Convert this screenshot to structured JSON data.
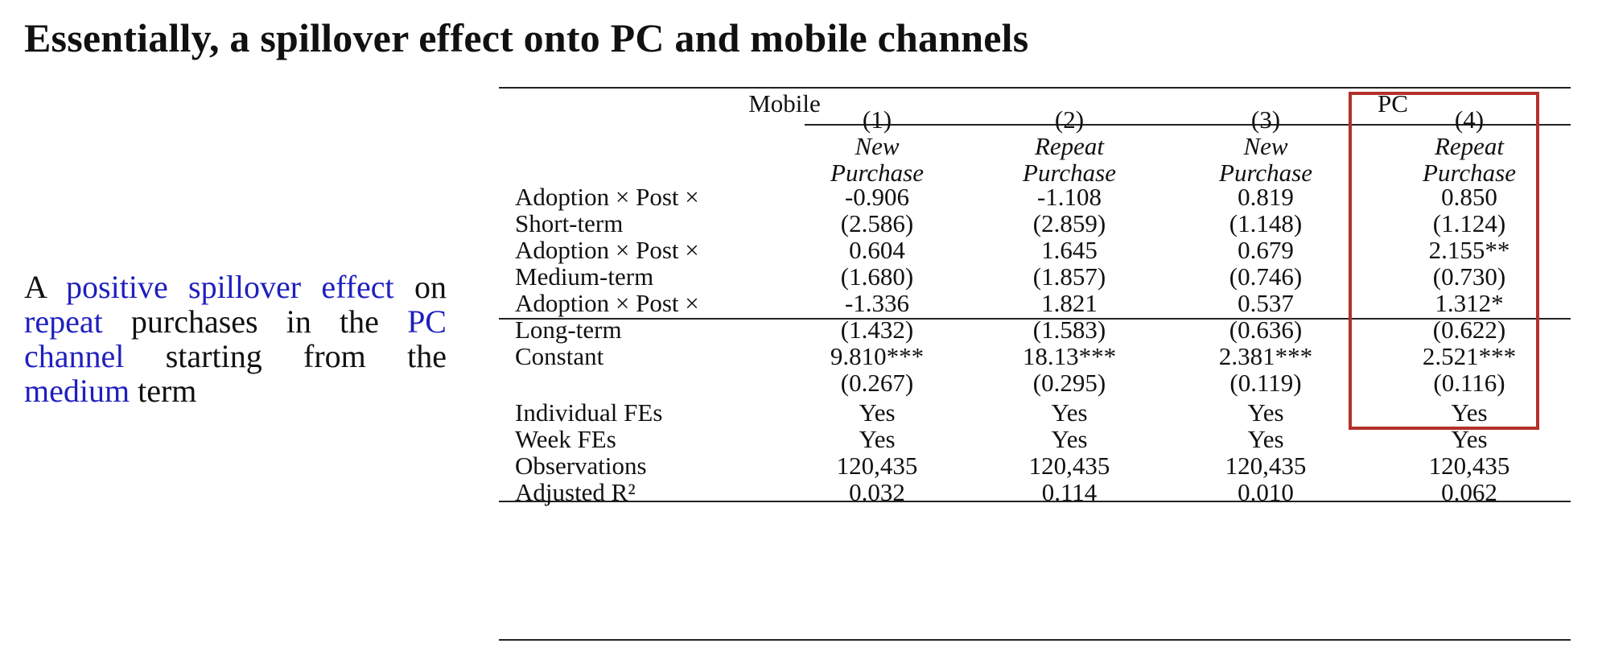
{
  "title": "Essentially, a spillover effect onto PC and mobile channels",
  "callout": [
    {
      "text": "A ",
      "highlight": false
    },
    {
      "text": "positive spillover effect",
      "highlight": true
    },
    {
      "text": " on ",
      "highlight": false
    },
    {
      "text": "repeat",
      "highlight": true
    },
    {
      "text": " purchases in the ",
      "highlight": false
    },
    {
      "text": "PC channel",
      "highlight": true
    },
    {
      "text": " starting from the ",
      "highlight": false
    },
    {
      "text": "medium",
      "highlight": true
    },
    {
      "text": " term",
      "highlight": false
    }
  ],
  "colors": {
    "highlight_text": "#1f1fbf",
    "highlight_box": "#b3312a"
  },
  "table": {
    "groups": {
      "mobile": "Mobile",
      "pc": "PC"
    },
    "columns": [
      {
        "num": "(1)",
        "l1": "New",
        "l2": "Purchase"
      },
      {
        "num": "(2)",
        "l1": "Repeat",
        "l2": "Purchase"
      },
      {
        "num": "(3)",
        "l1": "New",
        "l2": "Purchase"
      },
      {
        "num": "(4)",
        "l1": "Repeat",
        "l2": "Purchase"
      }
    ],
    "rows": [
      {
        "label": "Adoption × Post ×",
        "values": [
          "-0.906",
          "-1.108",
          "0.819",
          "0.850"
        ]
      },
      {
        "label": "Short-term",
        "values": [
          "(2.586)",
          "(2.859)",
          "(1.148)",
          "(1.124)"
        ]
      },
      {
        "label": "Adoption × Post ×",
        "values": [
          "0.604",
          "1.645",
          "0.679",
          "2.155**"
        ]
      },
      {
        "label": "Medium-term",
        "values": [
          "(1.680)",
          "(1.857)",
          "(0.746)",
          "(0.730)"
        ]
      },
      {
        "label": "Adoption × Post ×",
        "values": [
          "-1.336",
          "1.821",
          "0.537",
          "1.312*"
        ]
      },
      {
        "label": "Long-term",
        "values": [
          "(1.432)",
          "(1.583)",
          "(0.636)",
          "(0.622)"
        ]
      },
      {
        "label": "Constant",
        "values": [
          "9.810***",
          "18.13***",
          "2.381***",
          "2.521***"
        ]
      },
      {
        "label": "",
        "values": [
          "(0.267)",
          "(0.295)",
          "(0.119)",
          "(0.116)"
        ]
      }
    ],
    "footer_rows": [
      {
        "label": "Individual FEs",
        "values": [
          "Yes",
          "Yes",
          "Yes",
          "Yes"
        ]
      },
      {
        "label": "Week FEs",
        "values": [
          "Yes",
          "Yes",
          "Yes",
          "Yes"
        ]
      },
      {
        "label": "Observations",
        "values": [
          "120,435",
          "120,435",
          "120,435",
          "120,435"
        ]
      },
      {
        "label": "Adjusted R²",
        "values": [
          "0.032",
          "0.114",
          "0.010",
          "0.062"
        ]
      }
    ]
  }
}
